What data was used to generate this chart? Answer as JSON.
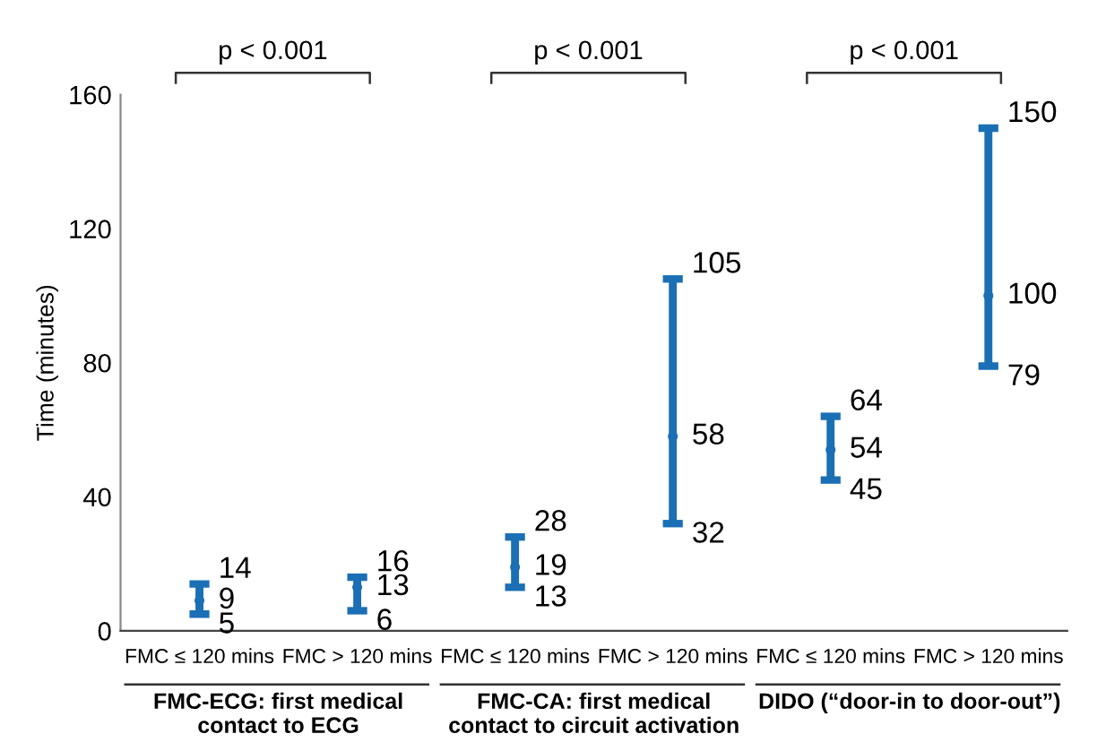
{
  "chart_data": {
    "type": "scatter",
    "ylabel": "Time (minutes)",
    "categories": [
      "FMC ≤ 120 mins",
      "FMC > 120 mins",
      "FMC ≤ 120 mins",
      "FMC > 120 mins",
      "FMC ≤ 120 mins",
      "FMC > 120 mins"
    ],
    "values": [
      9,
      13,
      19,
      58,
      54,
      100
    ],
    "errors": [
      [
        5,
        14
      ],
      [
        6,
        16
      ],
      [
        13,
        28
      ],
      [
        32,
        105
      ],
      [
        45,
        64
      ],
      [
        79,
        150
      ]
    ],
    "color": "#1a6fb5",
    "marker": "circle",
    "data_labels": true,
    "ylim": [
      0,
      160
    ],
    "yticks": [
      0,
      40,
      80,
      120,
      160
    ],
    "annotations": [
      "p < 0.001",
      "p < 0.001",
      "p < 0.001",
      "FMC-ECG: first medical\ncontact to ECG",
      "FMC-CA: first medical\ncontact to circuit activation",
      "DIDO (“door-in to door-out”)",
      "14",
      "5",
      "16",
      "6",
      "28",
      "13",
      "105",
      "32",
      "64",
      "45",
      "150",
      "79"
    ],
    "grid": false
  }
}
